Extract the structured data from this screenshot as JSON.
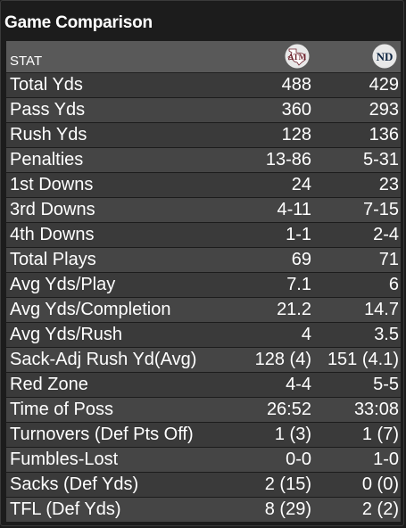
{
  "title": "Game Comparison",
  "header": {
    "stat_label": "STAT",
    "team1_logo": "texas-am-logo",
    "team2_logo": "notre-dame-logo"
  },
  "colors": {
    "header_bg": "#595959",
    "row_odd": "#3a3a3a",
    "row_even": "#454545",
    "aggie_maroon": "#6b1f2a"
  },
  "rows": [
    {
      "label": "Total Yds",
      "team1": "488",
      "team2": "429"
    },
    {
      "label": "Pass Yds",
      "team1": "360",
      "team2": "293"
    },
    {
      "label": "Rush Yds",
      "team1": "128",
      "team2": "136"
    },
    {
      "label": "Penalties",
      "team1": "13-86",
      "team2": "5-31"
    },
    {
      "label": "1st Downs",
      "team1": "24",
      "team2": "23"
    },
    {
      "label": "3rd Downs",
      "team1": "4-11",
      "team2": "7-15"
    },
    {
      "label": "4th Downs",
      "team1": "1-1",
      "team2": "2-4"
    },
    {
      "label": "Total Plays",
      "team1": "69",
      "team2": "71"
    },
    {
      "label": "Avg Yds/Play",
      "team1": "7.1",
      "team2": "6"
    },
    {
      "label": "Avg Yds/Completion",
      "team1": "21.2",
      "team2": "14.7"
    },
    {
      "label": "Avg Yds/Rush",
      "team1": "4",
      "team2": "3.5"
    },
    {
      "label": "Sack-Adj Rush Yd(Avg)",
      "team1": "128 (4)",
      "team2": "151 (4.1)"
    },
    {
      "label": "Red Zone",
      "team1": "4-4",
      "team2": "5-5"
    },
    {
      "label": "Time of Poss",
      "team1": "26:52",
      "team2": "33:08"
    },
    {
      "label": "Turnovers (Def Pts Off)",
      "team1": "1 (3)",
      "team2": "1 (7)"
    },
    {
      "label": "Fumbles-Lost",
      "team1": "0-0",
      "team2": "1-0"
    },
    {
      "label": "Sacks (Def Yds)",
      "team1": "2 (15)",
      "team2": "0 (0)"
    },
    {
      "label": "TFL (Def Yds)",
      "team1": "8 (29)",
      "team2": "2 (2)"
    }
  ]
}
